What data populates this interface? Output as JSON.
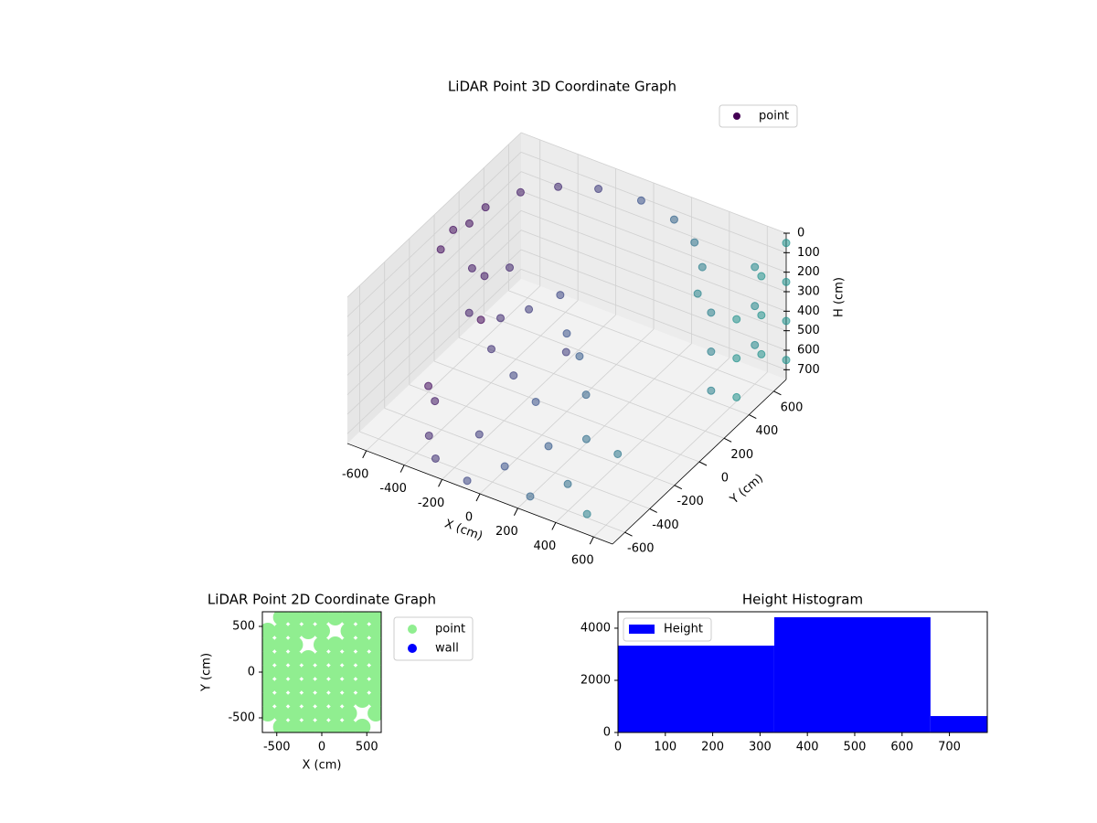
{
  "chart_data": [
    {
      "type": "scatter3d",
      "title": "LiDAR Point 3D Coordinate Graph",
      "x_label": "X (cm)",
      "y_label": "Y (cm)",
      "z_label": "H (cm)",
      "xlim": [
        -700,
        700
      ],
      "ylim": [
        -700,
        700
      ],
      "zlim": [
        750,
        0
      ],
      "xticks": [
        -600,
        -400,
        -200,
        0,
        200,
        400,
        600
      ],
      "yticks": [
        -600,
        -400,
        -200,
        0,
        200,
        400,
        600
      ],
      "zticks": [
        0,
        100,
        200,
        300,
        400,
        500,
        600,
        700
      ],
      "grid": true,
      "legend": "upper right",
      "series": [
        {
          "name": "point",
          "colormap": "viridis",
          "x": [
            -600,
            -560,
            -480,
            -360,
            -200,
            0,
            200,
            360,
            480,
            560,
            -600,
            -580,
            -500,
            -500,
            -450,
            -400,
            -350,
            -300,
            -200,
            -100,
            0,
            100,
            -150,
            0,
            200,
            300,
            700,
            700,
            700,
            700,
            700,
            700,
            700,
            700,
            700,
            700,
            600,
            600,
            600,
            500,
            500,
            500,
            -400,
            -300,
            -200,
            0,
            200,
            100,
            -500,
            -600,
            300,
            400,
            -100,
            500,
            -650,
            -200
          ],
          "y": [
            0,
            200,
            360,
            480,
            560,
            600,
            560,
            480,
            360,
            200,
            -100,
            100,
            0,
            100,
            -100,
            150,
            0,
            -150,
            0,
            100,
            0,
            -50,
            -200,
            -250,
            -150,
            -300,
            300,
            300,
            300,
            500,
            500,
            500,
            700,
            700,
            700,
            700,
            600,
            600,
            600,
            400,
            400,
            400,
            -500,
            -600,
            -400,
            -500,
            -600,
            -300,
            -300,
            -200,
            -450,
            -200,
            -650,
            -600,
            300,
            300
          ],
          "z": [
            40,
            30,
            20,
            20,
            20,
            30,
            30,
            40,
            50,
            60,
            80,
            60,
            200,
            300,
            350,
            250,
            400,
            450,
            300,
            250,
            350,
            400,
            500,
            550,
            500,
            600,
            200,
            400,
            600,
            100,
            300,
            500,
            50,
            250,
            450,
            650,
            150,
            350,
            550,
            300,
            500,
            700,
            720,
            740,
            700,
            730,
            750,
            710,
            700,
            720,
            740,
            700,
            750,
            730,
            700,
            700
          ]
        }
      ]
    },
    {
      "type": "scatter",
      "title": "LiDAR Point 2D Coordinate Graph",
      "x_label": "X (cm)",
      "y_label": "Y (cm)",
      "xlim": [
        -660,
        660
      ],
      "ylim": [
        -660,
        660
      ],
      "xticks": [
        -500,
        0,
        500
      ],
      "yticks": [
        -500,
        0,
        500
      ],
      "legend": "outside right",
      "series": [
        {
          "name": "point",
          "color": "#90ee90",
          "x": [
            -450,
            -300,
            -150,
            0,
            150,
            300,
            450,
            600,
            -600,
            -450,
            -300,
            -150,
            0,
            300,
            450,
            600,
            -600,
            -450,
            -300,
            0,
            150,
            300,
            450,
            600,
            -600,
            -450,
            -300,
            -150,
            0,
            150,
            300,
            450,
            600,
            -600,
            -450,
            -300,
            -150,
            0,
            150,
            300,
            450,
            600,
            -600,
            -450,
            -300,
            -150,
            0,
            150,
            300,
            450,
            600,
            -600,
            -450,
            -300,
            -150,
            0,
            150,
            300,
            450,
            600,
            -600,
            -450,
            -300,
            -150,
            0,
            150,
            300,
            600,
            -450,
            -300,
            -150,
            0,
            150,
            300,
            450
          ],
          "y": [
            600,
            600,
            600,
            600,
            600,
            600,
            600,
            600,
            450,
            450,
            450,
            450,
            450,
            450,
            450,
            450,
            300,
            300,
            300,
            300,
            300,
            300,
            300,
            300,
            150,
            150,
            150,
            150,
            150,
            150,
            150,
            150,
            150,
            0,
            0,
            0,
            0,
            0,
            0,
            0,
            0,
            0,
            -150,
            -150,
            -150,
            -150,
            -150,
            -150,
            -150,
            -150,
            -150,
            -300,
            -300,
            -300,
            -300,
            -300,
            -300,
            -300,
            -300,
            -300,
            -450,
            -450,
            -450,
            -450,
            -450,
            -450,
            -450,
            -450,
            -600,
            -600,
            -600,
            -600,
            -600,
            -600,
            -600
          ]
        },
        {
          "name": "wall",
          "color": "#0000ff",
          "x": [],
          "y": []
        }
      ]
    },
    {
      "type": "histogram",
      "title": "Height Histogram",
      "bins": [
        0,
        330,
        660,
        780
      ],
      "xlim": [
        0,
        780
      ],
      "ylim": [
        0,
        4630
      ],
      "xticks": [
        0,
        100,
        200,
        300,
        400,
        500,
        600,
        700
      ],
      "yticks": [
        0,
        2000,
        4000
      ],
      "legend": "upper left",
      "series": [
        {
          "name": "Height",
          "color": "#0000ff",
          "values": [
            3330,
            4420,
            630
          ]
        }
      ]
    }
  ]
}
